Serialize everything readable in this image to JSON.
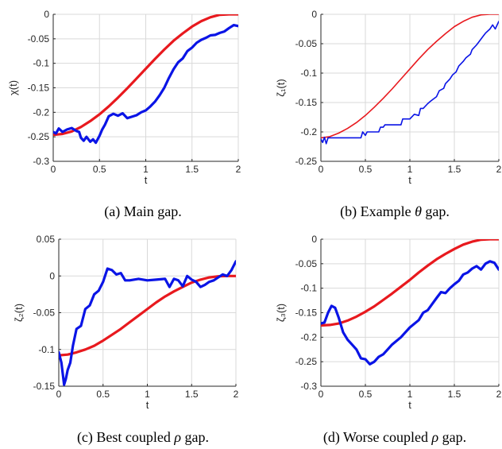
{
  "captions": {
    "a": {
      "prefix": "(a) Main gap.",
      "symbol": "",
      "suffix": ""
    },
    "b": {
      "prefix": "(b) Example ",
      "symbol": "θ",
      "suffix": " gap."
    },
    "c": {
      "prefix": "(c) Best coupled ",
      "symbol": "ρ",
      "suffix": " gap."
    },
    "d": {
      "prefix": "(d) Worse coupled ",
      "symbol": "ρ",
      "suffix": " gap."
    }
  },
  "colors": {
    "estimate": "#0a14e6",
    "reference": "#e8191e",
    "axis": "#262626",
    "grid": "#d9d9d9"
  },
  "chart_data": [
    {
      "id": "a",
      "type": "line",
      "title": "",
      "xlabel": "t",
      "ylabel": "χ(t)",
      "xlim": [
        0,
        2
      ],
      "ylim": [
        -0.3,
        0
      ],
      "xticks": [
        "0",
        "0.5",
        "1",
        "1.5",
        "2"
      ],
      "yticks": [
        "0",
        "-0.05",
        "-0.1",
        "-0.15",
        "-0.2",
        "-0.25",
        "-0.3"
      ],
      "grid": true,
      "series": [
        {
          "color": "#e8191e",
          "width": 3.2,
          "x": [
            0,
            0.1,
            0.2,
            0.3,
            0.4,
            0.5,
            0.6,
            0.7,
            0.8,
            0.9,
            1.0,
            1.1,
            1.2,
            1.3,
            1.4,
            1.5,
            1.6,
            1.7,
            1.8,
            1.9,
            2.0
          ],
          "y": [
            -0.246,
            -0.244,
            -0.239,
            -0.23,
            -0.218,
            -0.204,
            -0.188,
            -0.17,
            -0.151,
            -0.131,
            -0.111,
            -0.091,
            -0.072,
            -0.054,
            -0.039,
            -0.025,
            -0.014,
            -0.006,
            -0.001,
            0.0,
            0.0
          ]
        },
        {
          "color": "#0a14e6",
          "width": 3.2,
          "x": [
            0,
            0.03,
            0.06,
            0.1,
            0.15,
            0.2,
            0.25,
            0.28,
            0.3,
            0.33,
            0.36,
            0.4,
            0.43,
            0.46,
            0.5,
            0.53,
            0.56,
            0.6,
            0.65,
            0.7,
            0.75,
            0.8,
            0.85,
            0.9,
            0.95,
            1.0,
            1.05,
            1.1,
            1.15,
            1.2,
            1.25,
            1.3,
            1.35,
            1.4,
            1.45,
            1.5,
            1.55,
            1.6,
            1.65,
            1.7,
            1.75,
            1.8,
            1.85,
            1.9,
            1.95,
            2.0
          ],
          "y": [
            -0.24,
            -0.243,
            -0.233,
            -0.24,
            -0.235,
            -0.232,
            -0.238,
            -0.24,
            -0.252,
            -0.258,
            -0.25,
            -0.26,
            -0.255,
            -0.262,
            -0.248,
            -0.235,
            -0.225,
            -0.208,
            -0.203,
            -0.207,
            -0.202,
            -0.212,
            -0.209,
            -0.206,
            -0.2,
            -0.196,
            -0.188,
            -0.178,
            -0.165,
            -0.15,
            -0.13,
            -0.112,
            -0.098,
            -0.09,
            -0.075,
            -0.068,
            -0.058,
            -0.052,
            -0.048,
            -0.043,
            -0.042,
            -0.038,
            -0.035,
            -0.028,
            -0.022,
            -0.024
          ]
        }
      ]
    },
    {
      "id": "b",
      "type": "line",
      "title": "",
      "xlabel": "t",
      "ylabel": "ζ₁(t)",
      "xlim": [
        0,
        2
      ],
      "ylim": [
        -0.25,
        0
      ],
      "xticks": [
        "0",
        "0.5",
        "1",
        "1.5",
        "2"
      ],
      "yticks": [
        "0",
        "-0.05",
        "-0.1",
        "-0.15",
        "-0.2",
        "-0.25"
      ],
      "grid": true,
      "series": [
        {
          "color": "#e8191e",
          "width": 1.6,
          "x": [
            0,
            0.1,
            0.2,
            0.3,
            0.4,
            0.5,
            0.6,
            0.7,
            0.8,
            0.9,
            1.0,
            1.1,
            1.2,
            1.3,
            1.4,
            1.5,
            1.6,
            1.7,
            1.8,
            1.9,
            2.0
          ],
          "y": [
            -0.21,
            -0.208,
            -0.202,
            -0.194,
            -0.184,
            -0.172,
            -0.158,
            -0.143,
            -0.127,
            -0.11,
            -0.093,
            -0.076,
            -0.06,
            -0.046,
            -0.033,
            -0.021,
            -0.012,
            -0.005,
            -0.001,
            0.0,
            0.0
          ]
        },
        {
          "color": "#0a14e6",
          "width": 1.6,
          "x": [
            0,
            0.02,
            0.04,
            0.06,
            0.08,
            0.1,
            0.3,
            0.45,
            0.47,
            0.5,
            0.52,
            0.55,
            0.65,
            0.67,
            0.7,
            0.72,
            0.8,
            0.9,
            0.92,
            1.0,
            1.05,
            1.1,
            1.12,
            1.15,
            1.2,
            1.23,
            1.3,
            1.33,
            1.38,
            1.4,
            1.45,
            1.48,
            1.52,
            1.55,
            1.6,
            1.63,
            1.68,
            1.7,
            1.75,
            1.78,
            1.82,
            1.85,
            1.9,
            1.93,
            1.96,
            2.0
          ],
          "y": [
            -0.212,
            -0.218,
            -0.209,
            -0.22,
            -0.21,
            -0.21,
            -0.21,
            -0.21,
            -0.2,
            -0.206,
            -0.2,
            -0.2,
            -0.2,
            -0.192,
            -0.192,
            -0.188,
            -0.188,
            -0.188,
            -0.178,
            -0.178,
            -0.17,
            -0.172,
            -0.16,
            -0.16,
            -0.152,
            -0.148,
            -0.14,
            -0.13,
            -0.126,
            -0.118,
            -0.11,
            -0.103,
            -0.098,
            -0.088,
            -0.08,
            -0.074,
            -0.068,
            -0.06,
            -0.052,
            -0.046,
            -0.038,
            -0.032,
            -0.025,
            -0.018,
            -0.025,
            -0.012
          ]
        }
      ]
    },
    {
      "id": "c",
      "type": "line",
      "title": "",
      "xlabel": "t",
      "ylabel": "ζ₂(t)",
      "xlim": [
        0,
        2
      ],
      "ylim": [
        -0.15,
        0.05
      ],
      "xticks": [
        "0",
        "0.5",
        "1",
        "1.5",
        "2"
      ],
      "yticks": [
        "0.05",
        "0",
        "-0.05",
        "-0.1",
        "-0.15"
      ],
      "grid": true,
      "series": [
        {
          "color": "#e8191e",
          "width": 3.2,
          "x": [
            0,
            0.1,
            0.2,
            0.3,
            0.4,
            0.5,
            0.6,
            0.7,
            0.8,
            0.9,
            1.0,
            1.1,
            1.2,
            1.3,
            1.4,
            1.5,
            1.6,
            1.7,
            1.8,
            1.9,
            2.0
          ],
          "y": [
            -0.108,
            -0.107,
            -0.104,
            -0.1,
            -0.095,
            -0.088,
            -0.08,
            -0.072,
            -0.063,
            -0.054,
            -0.045,
            -0.036,
            -0.028,
            -0.021,
            -0.015,
            -0.009,
            -0.005,
            -0.002,
            -0.0005,
            0.0,
            0.0
          ]
        },
        {
          "color": "#0a14e6",
          "width": 3.2,
          "x": [
            0,
            0.03,
            0.06,
            0.08,
            0.1,
            0.13,
            0.16,
            0.2,
            0.25,
            0.3,
            0.35,
            0.4,
            0.45,
            0.5,
            0.55,
            0.6,
            0.65,
            0.7,
            0.75,
            0.8,
            0.9,
            1.0,
            1.1,
            1.2,
            1.25,
            1.3,
            1.35,
            1.4,
            1.45,
            1.5,
            1.55,
            1.6,
            1.65,
            1.7,
            1.75,
            1.8,
            1.85,
            1.9,
            1.95,
            2.0
          ],
          "y": [
            -0.104,
            -0.118,
            -0.148,
            -0.14,
            -0.128,
            -0.118,
            -0.095,
            -0.072,
            -0.068,
            -0.045,
            -0.04,
            -0.025,
            -0.02,
            -0.008,
            0.01,
            0.008,
            0.002,
            0.004,
            -0.006,
            -0.006,
            -0.004,
            -0.006,
            -0.005,
            -0.004,
            -0.015,
            -0.004,
            -0.006,
            -0.014,
            0.0,
            -0.005,
            -0.008,
            -0.015,
            -0.012,
            -0.008,
            -0.006,
            -0.002,
            0.002,
            0.0,
            0.008,
            0.02
          ]
        }
      ]
    },
    {
      "id": "d",
      "type": "line",
      "title": "",
      "xlabel": "t",
      "ylabel": "ζ₃(t)",
      "xlim": [
        0,
        2
      ],
      "ylim": [
        -0.3,
        0
      ],
      "xticks": [
        "0",
        "0.5",
        "1",
        "1.5",
        "2"
      ],
      "yticks": [
        "0",
        "-0.05",
        "-0.1",
        "-0.15",
        "-0.2",
        "-0.25",
        "-0.3"
      ],
      "grid": true,
      "series": [
        {
          "color": "#e8191e",
          "width": 3.2,
          "x": [
            0,
            0.1,
            0.2,
            0.3,
            0.4,
            0.5,
            0.6,
            0.7,
            0.8,
            0.9,
            1.0,
            1.1,
            1.2,
            1.3,
            1.4,
            1.5,
            1.6,
            1.7,
            1.8,
            1.9,
            2.0
          ],
          "y": [
            -0.176,
            -0.175,
            -0.172,
            -0.166,
            -0.158,
            -0.148,
            -0.137,
            -0.124,
            -0.111,
            -0.097,
            -0.083,
            -0.068,
            -0.054,
            -0.041,
            -0.03,
            -0.02,
            -0.011,
            -0.005,
            -0.001,
            0.0,
            0.0
          ]
        },
        {
          "color": "#0a14e6",
          "width": 3.2,
          "x": [
            0,
            0.04,
            0.08,
            0.12,
            0.16,
            0.2,
            0.25,
            0.3,
            0.35,
            0.4,
            0.45,
            0.5,
            0.55,
            0.6,
            0.65,
            0.7,
            0.75,
            0.8,
            0.9,
            1.0,
            1.1,
            1.15,
            1.2,
            1.3,
            1.35,
            1.4,
            1.45,
            1.5,
            1.55,
            1.6,
            1.65,
            1.7,
            1.75,
            1.8,
            1.85,
            1.9,
            1.95,
            2.0
          ],
          "y": [
            -0.172,
            -0.17,
            -0.15,
            -0.136,
            -0.14,
            -0.16,
            -0.19,
            -0.205,
            -0.215,
            -0.225,
            -0.243,
            -0.245,
            -0.255,
            -0.25,
            -0.24,
            -0.235,
            -0.225,
            -0.215,
            -0.2,
            -0.18,
            -0.165,
            -0.15,
            -0.145,
            -0.12,
            -0.108,
            -0.11,
            -0.1,
            -0.092,
            -0.085,
            -0.072,
            -0.068,
            -0.06,
            -0.055,
            -0.062,
            -0.05,
            -0.045,
            -0.048,
            -0.062
          ]
        }
      ]
    }
  ]
}
